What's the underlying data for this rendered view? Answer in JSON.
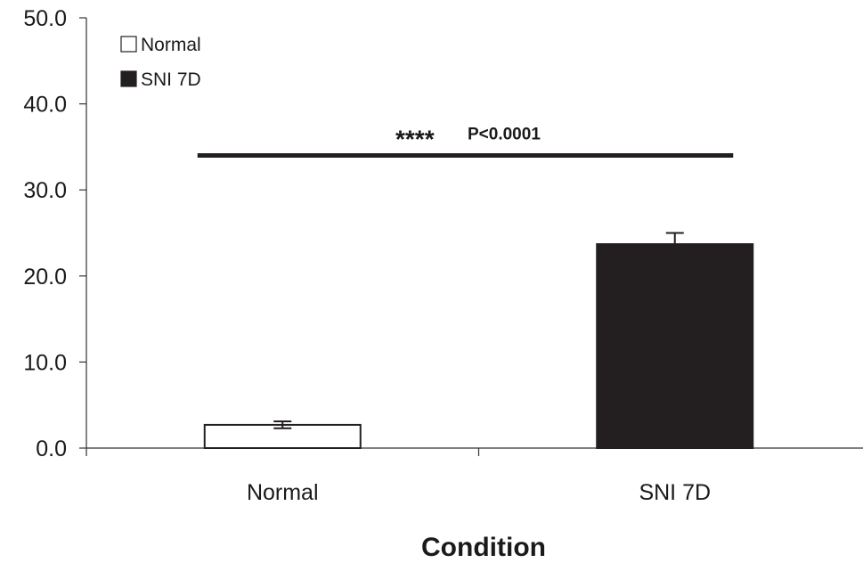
{
  "chart_data": {
    "type": "bar",
    "categories": [
      "Normal",
      "SNI 7D"
    ],
    "series": [
      {
        "name": "Normal",
        "values": [
          2.7,
          null
        ],
        "errors": [
          0.4,
          null
        ],
        "color": "#ffffff"
      },
      {
        "name": "SNI 7D",
        "values": [
          null,
          23.7
        ],
        "errors": [
          null,
          1.3
        ],
        "color": "#231f20"
      }
    ],
    "title": "",
    "xlabel": "Condition",
    "ylabel": "",
    "ylim": [
      0,
      50
    ],
    "yticks": [
      "0.0",
      "10.0",
      "20.0",
      "30.0",
      "40.0",
      "50.0"
    ],
    "grid": false,
    "legend": {
      "position": "top-left",
      "entries": [
        "Normal",
        "SNI 7D"
      ]
    },
    "annotation": {
      "stars": "****",
      "text": "P<0.0001",
      "y": 34
    }
  }
}
